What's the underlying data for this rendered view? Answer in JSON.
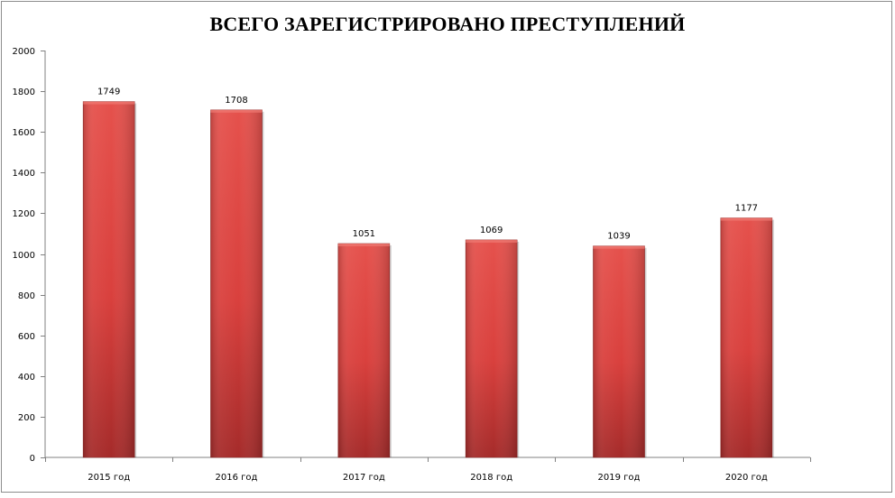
{
  "chart_data": {
    "type": "bar",
    "title": "ВСЕГО ЗАРЕГИСТРИРОВАНО ПРЕСТУПЛЕНИЙ",
    "xlabel": "",
    "ylabel": "",
    "categories": [
      "2015 год",
      "2016 год",
      "2017 год",
      "2018 год",
      "2019 год",
      "2020 год"
    ],
    "values": [
      1749,
      1708,
      1051,
      1069,
      1039,
      1177
    ],
    "ylim": [
      0,
      2000
    ],
    "yticks": [
      0,
      200,
      400,
      600,
      800,
      1000,
      1200,
      1400,
      1600,
      1800,
      2000
    ],
    "grid": false,
    "legend": "none",
    "bar_color": "#d9403d",
    "bar_color_light": "#e5514c",
    "bar_color_dark": "#a52b2a"
  }
}
